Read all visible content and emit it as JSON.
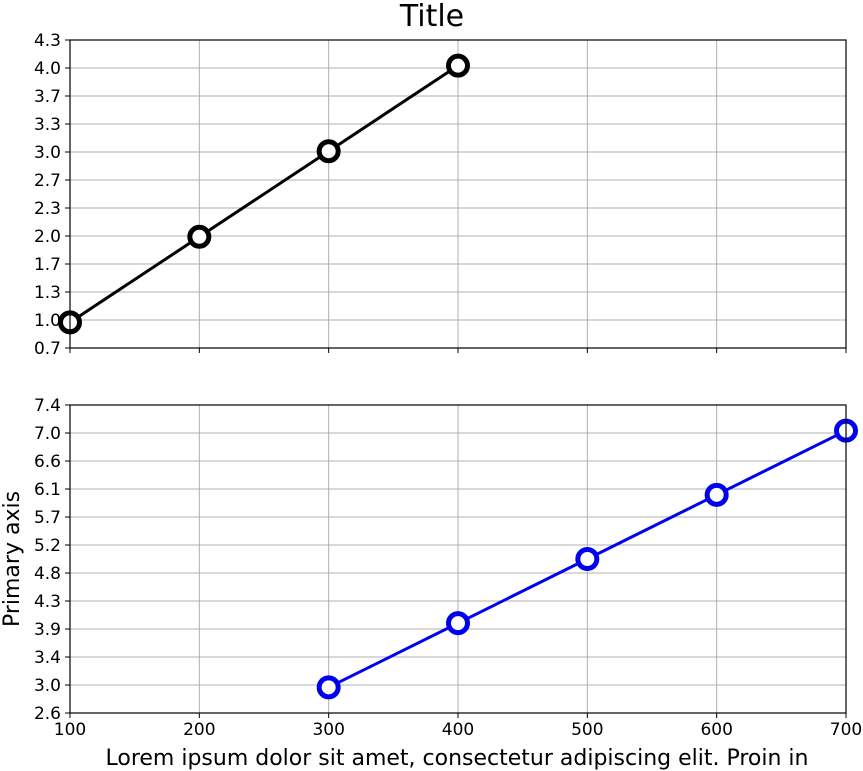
{
  "chart_data": [
    {
      "type": "line",
      "title": "Title",
      "xlabel": "",
      "ylabel": "",
      "xlim": [
        100,
        700
      ],
      "ylim": [
        0.7,
        4.3
      ],
      "yticks": [
        "0.7",
        "1.0",
        "1.3",
        "1.7",
        "2.0",
        "2.3",
        "2.7",
        "3.0",
        "3.3",
        "3.7",
        "4.0",
        "4.3"
      ],
      "x_ticks_shown": false,
      "grid": true,
      "series": [
        {
          "color": "#000000",
          "x": [
            100,
            200,
            300,
            400
          ],
          "y": [
            1.0,
            2.0,
            3.0,
            4.0
          ],
          "marker": "open-circle"
        }
      ]
    },
    {
      "type": "line",
      "title": "",
      "xlabel": "Lorem ipsum dolor sit amet, consectetur adipiscing elit. Proin in",
      "ylabel": "Primary axis",
      "xlim": [
        100,
        700
      ],
      "ylim": [
        2.6,
        7.4
      ],
      "xticks": [
        "100",
        "200",
        "300",
        "400",
        "500",
        "600",
        "700"
      ],
      "yticks": [
        "2.6",
        "3.0",
        "3.4",
        "3.9",
        "4.3",
        "4.8",
        "5.2",
        "5.7",
        "6.1",
        "6.6",
        "7.0",
        "7.4"
      ],
      "grid": true,
      "series": [
        {
          "color": "#0000ee",
          "x": [
            300,
            400,
            500,
            600,
            700
          ],
          "y": [
            3.0,
            4.0,
            5.0,
            6.0,
            7.0
          ],
          "marker": "open-circle"
        }
      ]
    }
  ]
}
